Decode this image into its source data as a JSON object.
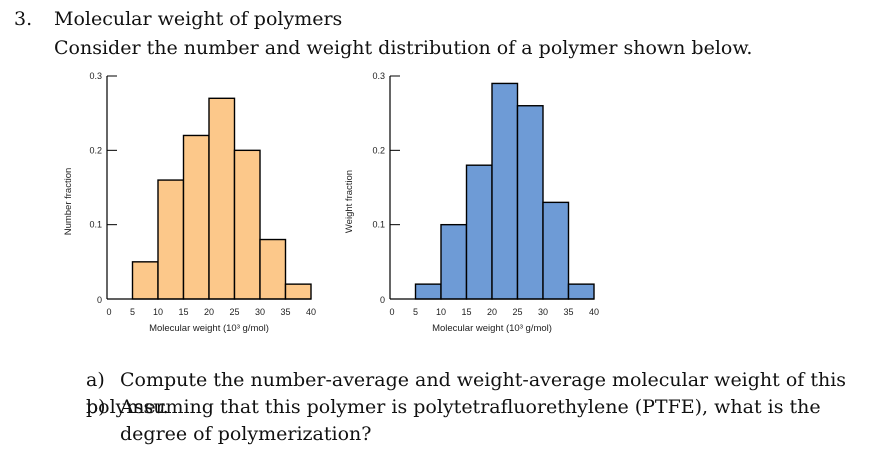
{
  "question": {
    "number": "3.",
    "title": "Molecular weight of polymers",
    "intro": "Consider the number and weight distribution of a polymer shown below."
  },
  "parts": [
    {
      "label": "a)",
      "text": "Compute the number-average and weight-average molecular weight of this polymer."
    },
    {
      "label": "b)",
      "text": "Assuming that this polymer is polytetrafluorethylene (PTFE), what is the degree of polymerization?"
    }
  ],
  "chart_data": [
    {
      "type": "bar",
      "title": "",
      "xlabel": "Molecular weight (10³ g/mol)",
      "ylabel": "Number fraction",
      "xlim": [
        0,
        40
      ],
      "ylim": [
        0,
        0.3
      ],
      "x_ticks": [
        "0",
        "5",
        "10",
        "15",
        "20",
        "25",
        "30",
        "35",
        "40"
      ],
      "y_ticks": [
        "0",
        "0.1",
        "0.2",
        "0.3"
      ],
      "bins": [
        [
          5,
          10
        ],
        [
          10,
          15
        ],
        [
          15,
          20
        ],
        [
          20,
          25
        ],
        [
          25,
          30
        ],
        [
          30,
          35
        ],
        [
          35,
          40
        ]
      ],
      "values": [
        0.05,
        0.16,
        0.22,
        0.27,
        0.2,
        0.08,
        0.02
      ],
      "color": "#FCC88A",
      "grid": false
    },
    {
      "type": "bar",
      "title": "",
      "xlabel": "Molecular weight (10³ g/mol)",
      "ylabel": "Weight fraction",
      "xlim": [
        0,
        40
      ],
      "ylim": [
        0,
        0.3
      ],
      "x_ticks": [
        "0",
        "5",
        "10",
        "15",
        "20",
        "25",
        "30",
        "35",
        "40"
      ],
      "y_ticks": [
        "0",
        "0.1",
        "0.2",
        "0.3"
      ],
      "bins": [
        [
          5,
          10
        ],
        [
          10,
          15
        ],
        [
          15,
          20
        ],
        [
          20,
          25
        ],
        [
          25,
          30
        ],
        [
          30,
          35
        ],
        [
          35,
          40
        ]
      ],
      "values": [
        0.02,
        0.1,
        0.18,
        0.29,
        0.26,
        0.13,
        0.02
      ],
      "color": "#6E9BD6",
      "grid": false
    }
  ]
}
